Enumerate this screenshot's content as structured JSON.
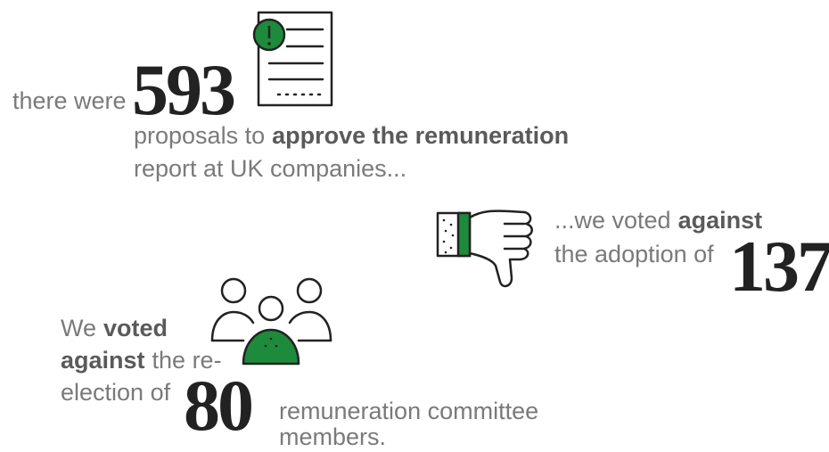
{
  "proposals": {
    "lead": "there were",
    "number": "593",
    "line1_plain": "proposals to",
    "line1_bold": "approve the remuneration",
    "line2": "report at UK companies..."
  },
  "against": {
    "line1_plain": "...we voted",
    "line1_bold": "against",
    "line2": "the adoption of",
    "number": "137"
  },
  "committee": {
    "line1_plain": "We",
    "line1_bold": "voted",
    "line2_bold": "against",
    "line2_plain": "the re-",
    "line3": "election of",
    "number": "80",
    "line4": "remuneration committee",
    "line5": "members."
  }
}
